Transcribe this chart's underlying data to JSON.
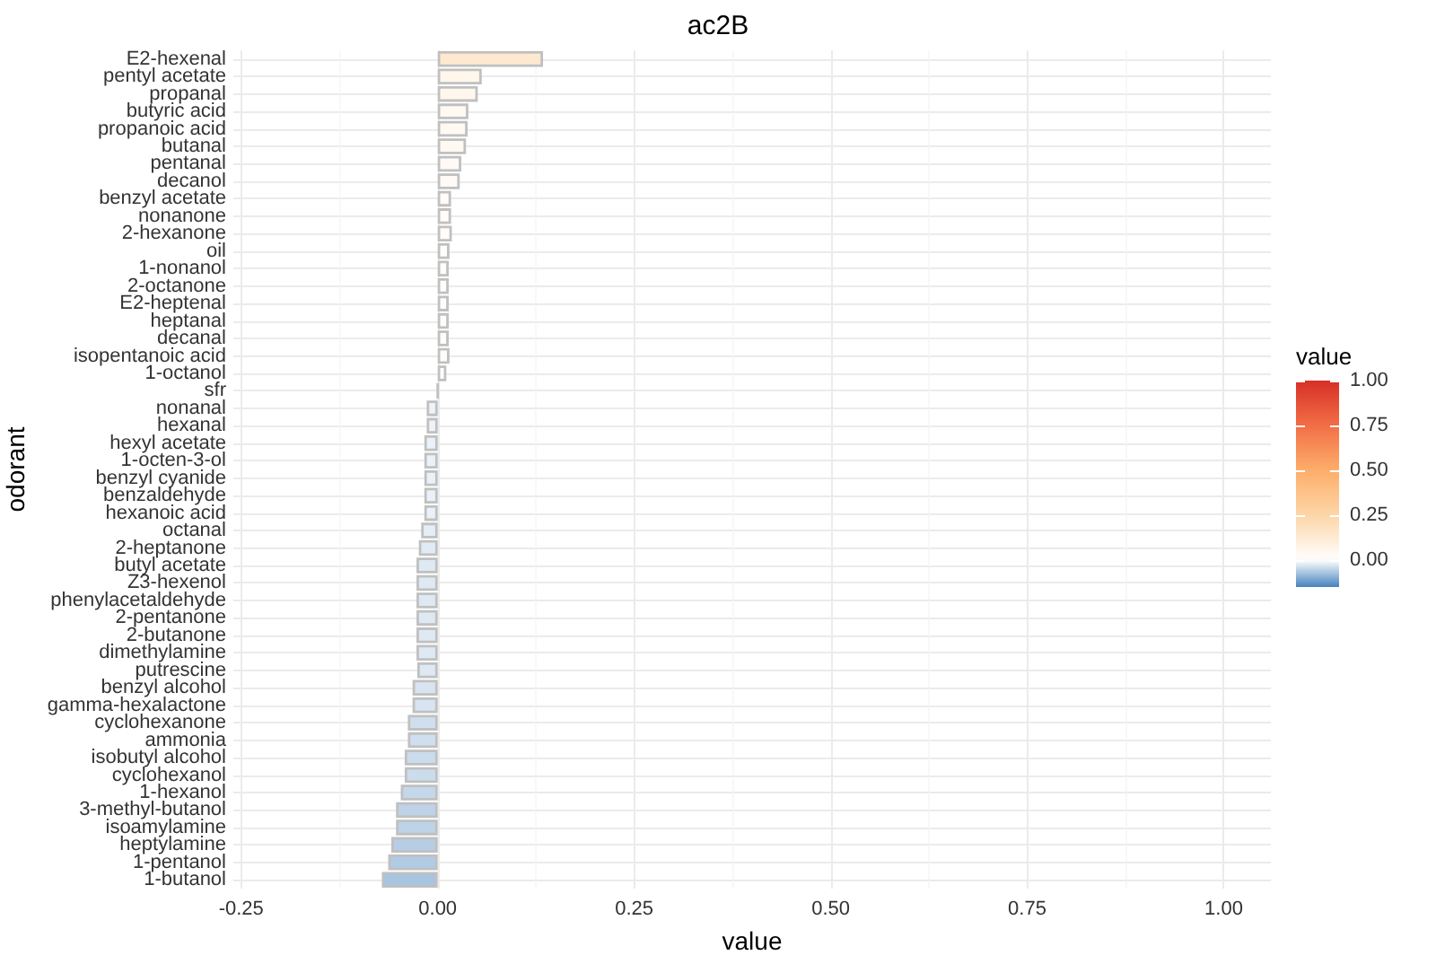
{
  "chart_data": {
    "type": "bar",
    "orientation": "horizontal",
    "title": "ac2B",
    "xlabel": "value",
    "ylabel": "odorant",
    "clabel": "value",
    "categories": [
      "E2-hexenal",
      "pentyl acetate",
      "propanal",
      "butyric acid",
      "propanoic acid",
      "butanal",
      "pentanal",
      "decanol",
      "benzyl acetate",
      "nonanone",
      "2-hexanone",
      "oil",
      "1-nonanol",
      "2-octanone",
      "E2-heptenal",
      "heptanal",
      "decanal",
      "isopentanoic acid",
      "1-octanol",
      "sfr",
      "nonanal",
      "hexanal",
      "hexyl acetate",
      "1-octen-3-ol",
      "benzyl cyanide",
      "benzaldehyde",
      "hexanoic acid",
      "octanal",
      "2-heptanone",
      "butyl acetate",
      "Z3-hexenol",
      "phenylacetaldehyde",
      "2-pentanone",
      "2-butanone",
      "dimethylamine",
      "putrescine",
      "benzyl alcohol",
      "gamma-hexalactone",
      "cyclohexanone",
      "ammonia",
      "isobutyl alcohol",
      "cyclohexanol",
      "1-hexanol",
      "3-methyl-butanol",
      "isoamylamine",
      "heptylamine",
      "1-pentanol",
      "1-butanol"
    ],
    "values": [
      0.134,
      0.056,
      0.051,
      0.039,
      0.038,
      0.036,
      0.03,
      0.028,
      0.017,
      0.017,
      0.018,
      0.015,
      0.014,
      0.014,
      0.014,
      0.014,
      0.014,
      0.015,
      0.011,
      0,
      -0.014,
      -0.014,
      -0.017,
      -0.017,
      -0.017,
      -0.017,
      -0.017,
      -0.021,
      -0.024,
      -0.027,
      -0.027,
      -0.027,
      -0.027,
      -0.027,
      -0.027,
      -0.026,
      -0.032,
      -0.032,
      -0.038,
      -0.038,
      -0.042,
      -0.042,
      -0.047,
      -0.053,
      -0.053,
      -0.059,
      -0.063,
      -0.071
    ],
    "xlim": [
      -0.26,
      1.06
    ],
    "xticks": [
      -0.25,
      {
        "value": 0,
        "label": "0.00"
      },
      0.25,
      {
        "value": 0.5,
        "label": "0.50"
      },
      0.75,
      {
        "value": 1,
        "label": "1.00"
      }
    ],
    "clim": [
      -0.15,
      1.0
    ],
    "cticks": [
      {
        "value": 0,
        "label": "0.00"
      },
      0.25,
      {
        "value": 0.5,
        "label": "0.50"
      },
      0.75,
      {
        "value": 1,
        "label": "1.00"
      }
    ],
    "grid": true
  }
}
